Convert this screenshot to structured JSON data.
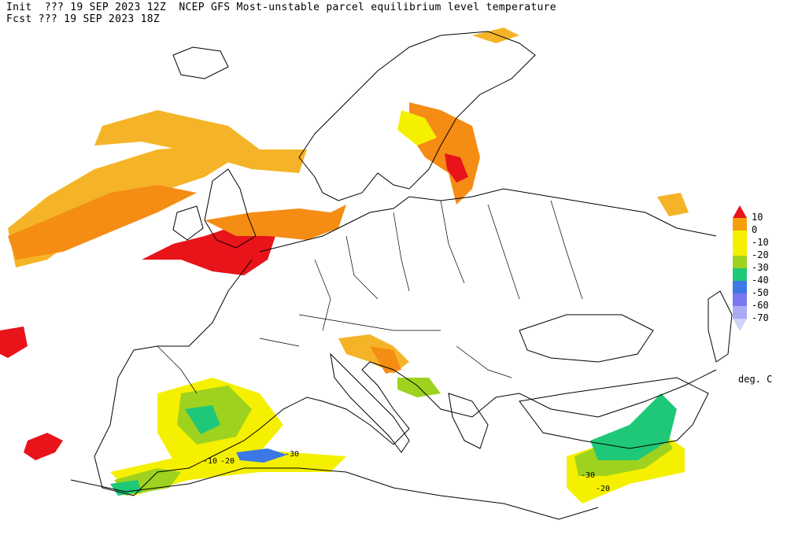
{
  "header": {
    "init_line": "Init  ??? 19 SEP 2023 12Z  NCEP GFS Most-unstable parcel equilibrium level temperature",
    "fcst_line": "Fcst ??? 19 SEP 2023 18Z"
  },
  "legend": {
    "units": "deg. C",
    "items": [
      {
        "label": "10",
        "color": "#e8141a"
      },
      {
        "label": "0",
        "color": "#f5a00a"
      },
      {
        "label": "-10",
        "color": "#f4f000"
      },
      {
        "label": "-20",
        "color": "#9ed21e"
      },
      {
        "label": "-30",
        "color": "#1ec878"
      },
      {
        "label": "-40",
        "color": "#3c78e6"
      },
      {
        "label": "-50",
        "color": "#7878f0"
      },
      {
        "label": "-60",
        "color": "#aaaaf5"
      },
      {
        "label": "-70",
        "color": "#d2d2fa"
      }
    ]
  },
  "map_labels": [
    {
      "text": "-10"
    },
    {
      "text": "-20"
    },
    {
      "text": "-30"
    },
    {
      "text": "-30"
    },
    {
      "text": "-20"
    }
  ],
  "colors": {
    "orange": "#f58c14",
    "light_orange": "#f5b428",
    "red": "#e8141a",
    "yellow": "#f4f000",
    "green": "#9ed21e",
    "teal": "#1ec878",
    "blue": "#3c78e6",
    "coast": "#000000"
  }
}
